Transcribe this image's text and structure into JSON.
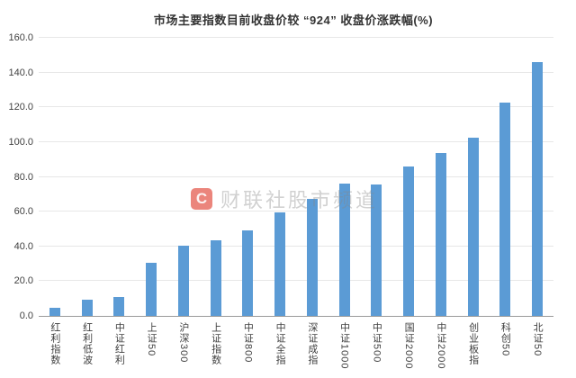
{
  "chart_data": {
    "type": "bar",
    "title": "市场主要指数目前收盘价较 “924” 收盘价涨跌幅(%)",
    "categories": [
      "红利指数",
      "红利低波",
      "中证红利",
      "上证50",
      "沪深300",
      "上证指数",
      "中证800",
      "中证全指",
      "深证成指",
      "中证1000",
      "中证500",
      "国证2000",
      "中证2000",
      "创业板指",
      "科创50",
      "北证50"
    ],
    "values": [
      4.5,
      9.5,
      11.0,
      30.5,
      40.5,
      43.5,
      49.0,
      59.5,
      67.5,
      76.0,
      75.5,
      86.0,
      93.5,
      102.5,
      122.5,
      146.0
    ],
    "xlabel": "",
    "ylabel": "",
    "ylim": [
      0,
      160
    ],
    "y_tick_step": 20,
    "y_tick_labels": [
      "0.0",
      "20.0",
      "40.0",
      "60.0",
      "80.0",
      "100.0",
      "120.0",
      "140.0",
      "160.0"
    ],
    "grid": true,
    "legend": false,
    "bar_color": "#5b9bd5",
    "gridline_color": "#e7e7e7",
    "axis_line_color": "#9a9a9a",
    "label_color": "#404040",
    "title_color": "#333333"
  },
  "watermark": {
    "logo_letter": "C",
    "logo_color": "rgba(223,58,43,0.62)",
    "text": "财联社股市频道"
  }
}
